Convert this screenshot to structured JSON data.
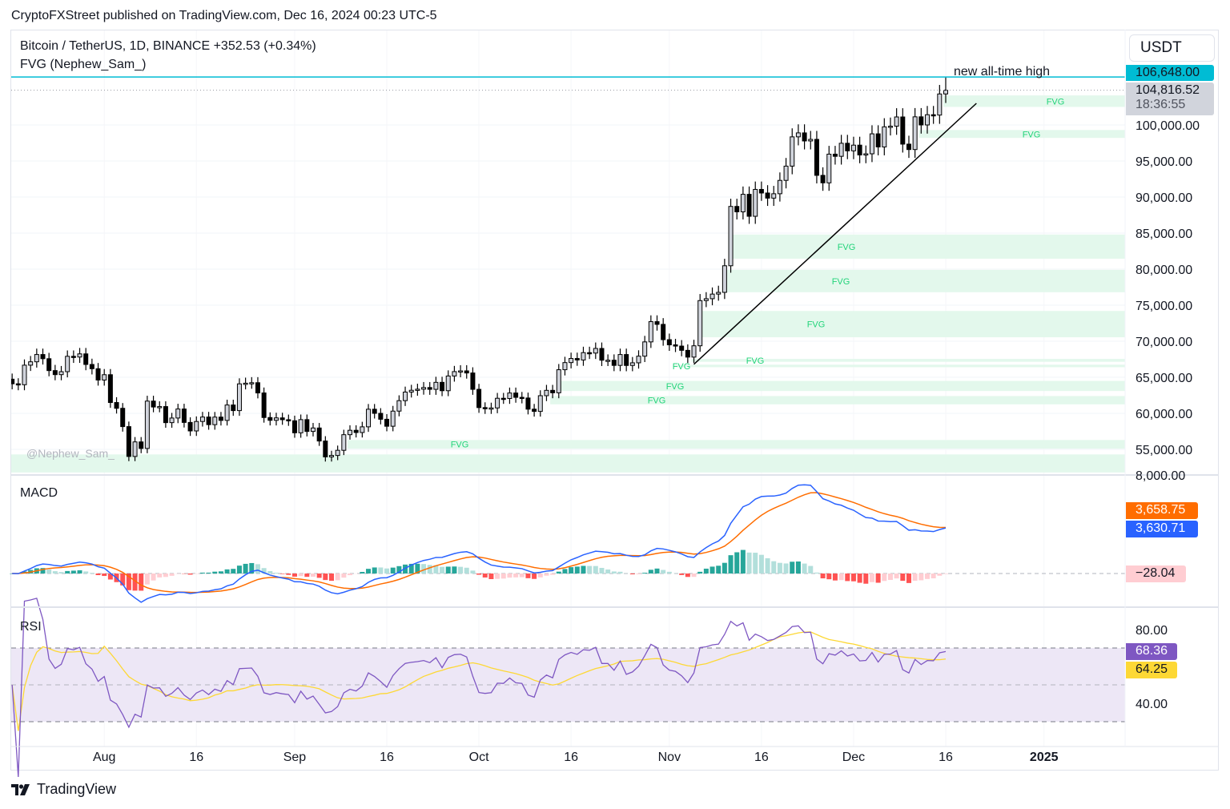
{
  "header": {
    "publisher": "CryptoFXStreet published on TradingView.com, Dec 16, 2024 00:23 UTC-5",
    "symbol_legend": "Bitcoin / TetherUS, 1D, BINANCE  +352.53 (+0.34%)",
    "indicator_legend": "FVG (Nephew_Sam_)",
    "currency": "USDT"
  },
  "footer": {
    "brand": "TradingView",
    "logo_icon": "tradingview-logo-icon"
  },
  "colors": {
    "ath_line": "#00bcd4",
    "fvg_fill": "#e3f8ec",
    "fvg_text": "#22d47a",
    "candle_up_fill": "#d1d4dc",
    "candle_down": "#000000",
    "macd_line": "#2962ff",
    "signal_line": "#ff6d00",
    "hist_up_strong": "#26a69a",
    "hist_up_weak": "#b2dfdb",
    "hist_down_strong": "#ff5252",
    "hist_down_weak": "#ffcdd2",
    "rsi_line": "#7e57c2",
    "rsi_ma": "#fdd835",
    "rsi_band": "#ede7f6"
  },
  "annotations": {
    "ath_text": "new all-time high",
    "watermark": "@Nephew_Sam_"
  },
  "price_tags": {
    "ath": "106,648.00",
    "last": "104,816.52",
    "countdown": "18:36:55"
  },
  "macd_pane": {
    "title": "MACD",
    "top_tick": "8,000.00",
    "signal_value": "3,658.75",
    "macd_value": "3,630.71",
    "hist_value": "−28.04"
  },
  "rsi_pane": {
    "title": "RSI",
    "ticks": [
      "80.00",
      "40.00"
    ],
    "rsi_value": "68.36",
    "ma_value": "64.25"
  },
  "chart_data": {
    "type": "candlestick",
    "symbol": "Bitcoin / TetherUS",
    "interval": "1D",
    "start_date": "2024-07-17",
    "end_date": "2024-12-16",
    "close": [
      64100,
      63970,
      66680,
      67150,
      68160,
      67580,
      65930,
      65370,
      65780,
      67910,
      67810,
      68250,
      66780,
      66190,
      64620,
      65360,
      61500,
      60700,
      58160,
      54020,
      56040,
      55130,
      61700,
      60880,
      60940,
      58710,
      59350,
      60600,
      58740,
      57560,
      58870,
      59490,
      58430,
      59480,
      59020,
      61160,
      60380,
      64090,
      64180,
      64250,
      62830,
      59420,
      59030,
      59370,
      59120,
      58970,
      57300,
      59130,
      57490,
      57970,
      56160,
      53960,
      54160,
      54870,
      57040,
      57650,
      57340,
      58130,
      60570,
      60000,
      59180,
      58210,
      60310,
      61760,
      62950,
      63200,
      63350,
      63580,
      63330,
      64300,
      63140,
      65180,
      65790,
      65890,
      65600,
      63330,
      60800,
      60650,
      60750,
      62090,
      62060,
      62820,
      62220,
      62130,
      60580,
      60270,
      62450,
      63190,
      62850,
      66050,
      67040,
      67610,
      67400,
      68420,
      68360,
      69000,
      67370,
      67370,
      66650,
      68160,
      66640,
      67010,
      67930,
      69910,
      72720,
      72340,
      70220,
      69500,
      69330,
      68740,
      67800,
      69370,
      75640,
      75900,
      76540,
      76780,
      80470,
      88700,
      87950,
      90380,
      87330,
      91060,
      90560,
      89850,
      90460,
      92310,
      94290,
      98350,
      98900,
      97780,
      98000,
      93010,
      91970,
      95950,
      95650,
      97460,
      96410,
      97200,
      95840,
      96000,
      98770,
      96950,
      99740,
      99830,
      101110,
      97340,
      96590,
      101130,
      100000,
      101420,
      101370,
      104300,
      104816.52
    ],
    "all_time_high": 106648,
    "y_ticks": [
      "100,000.00",
      "95,000.00",
      "90,000.00",
      "85,000.00",
      "80,000.00",
      "75,000.00",
      "70,000.00",
      "65,000.00",
      "60,000.00",
      "55,000.00"
    ],
    "y_tick_values": [
      100000,
      95000,
      90000,
      85000,
      80000,
      75000,
      70000,
      65000,
      60000,
      55000
    ],
    "x_ticks": [
      {
        "label": "Aug",
        "date": "2024-08-01"
      },
      {
        "label": "16",
        "date": "2024-08-16"
      },
      {
        "label": "Sep",
        "date": "2024-09-01"
      },
      {
        "label": "16",
        "date": "2024-09-16"
      },
      {
        "label": "Oct",
        "date": "2024-10-01"
      },
      {
        "label": "16",
        "date": "2024-10-16"
      },
      {
        "label": "Nov",
        "date": "2024-11-01"
      },
      {
        "label": "16",
        "date": "2024-11-16"
      },
      {
        "label": "Dec",
        "date": "2024-12-01"
      },
      {
        "label": "16",
        "date": "2024-12-16"
      },
      {
        "label": "2025",
        "date": "2025-01-01",
        "bold": true
      }
    ],
    "fvg_zones": [
      {
        "label": "FVG",
        "start": "2024-12-16",
        "top": 104100,
        "bottom": 102500
      },
      {
        "label": "FVG",
        "start": "2024-12-12",
        "top": 99300,
        "bottom": 98200
      },
      {
        "label": "FVG",
        "start": "2024-11-11",
        "top": 84800,
        "bottom": 81450
      },
      {
        "label": "FVG",
        "start": "2024-11-10",
        "top": 79900,
        "bottom": 76800
      },
      {
        "label": "FVG",
        "start": "2024-11-06",
        "top": 74200,
        "bottom": 70550
      },
      {
        "label": "FVG",
        "start": "2024-11-05",
        "top": 67550,
        "bottom": 67150
      },
      {
        "label": "FVG",
        "start": "2024-11-02",
        "top": 66750,
        "bottom": 66400
      },
      {
        "label": "FVG",
        "start": "2024-10-14",
        "top": 64500,
        "bottom": 63100
      },
      {
        "label": "FVG",
        "start": "2024-10-13",
        "top": 62400,
        "bottom": 61250
      },
      {
        "label": "FVG",
        "start": "2024-09-10",
        "top": 56300,
        "bottom": 55100
      },
      {
        "label": "",
        "start": "2024-07-17",
        "top": 54300,
        "bottom": 51800
      }
    ],
    "trendline": [
      {
        "date": "2024-11-05",
        "price": 66800
      },
      {
        "date": "2024-12-21",
        "price": 103000
      }
    ],
    "macd": {
      "fast": 12,
      "slow": 26,
      "signal": 9,
      "last_macd": 3630.71,
      "last_signal": 3658.75,
      "last_hist": -28.04
    },
    "rsi": {
      "period": 14,
      "ma_period": 14,
      "levels": [
        70,
        50,
        30
      ],
      "last_rsi": 68.36,
      "last_ma": 64.25
    }
  }
}
